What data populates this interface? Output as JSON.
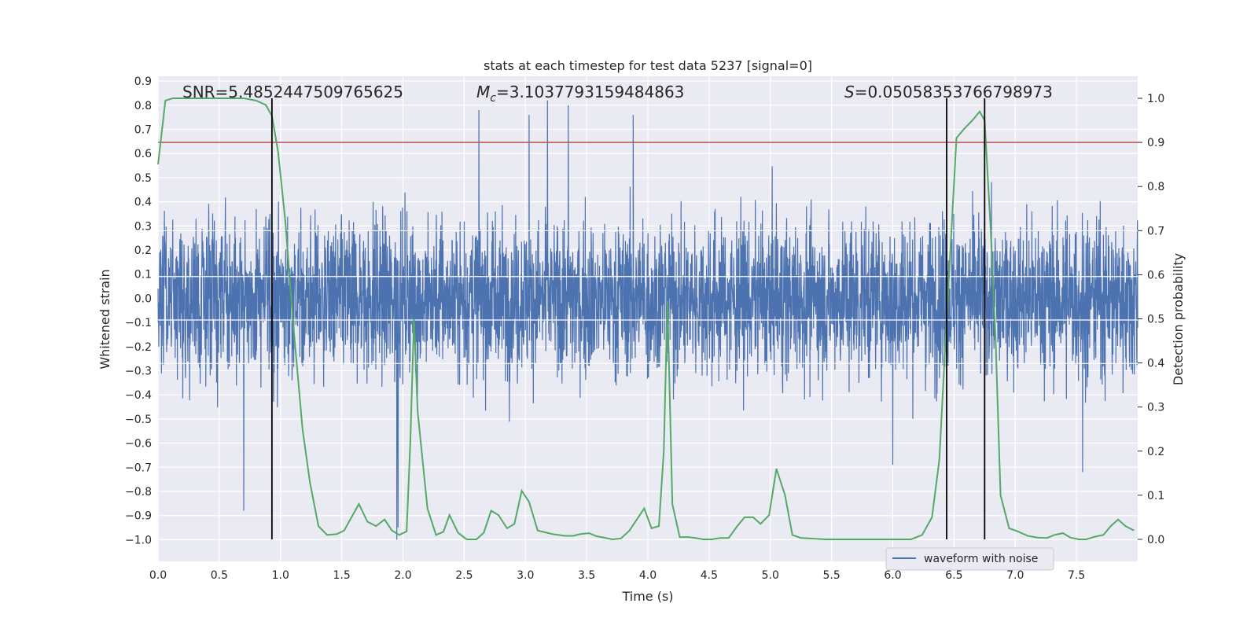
{
  "chart_data": {
    "type": "line",
    "title": "stats at each timestep for test data 5237 [signal=0]",
    "xlabel": "Time (s)",
    "ylabel": "Whitened strain",
    "y2label": "Detection probability",
    "xlim": [
      0.0,
      8.0
    ],
    "ylim": [
      -1.09,
      0.92
    ],
    "y2lim": [
      -0.05,
      1.05
    ],
    "xticks": [
      "0.0",
      "0.5",
      "1.0",
      "1.5",
      "2.0",
      "2.5",
      "3.0",
      "3.5",
      "4.0",
      "4.5",
      "5.0",
      "5.5",
      "6.0",
      "6.5",
      "7.0",
      "7.5"
    ],
    "yticks": [
      "0.9",
      "0.8",
      "0.7",
      "0.6",
      "0.5",
      "0.4",
      "0.3",
      "0.2",
      "0.1",
      "0.0",
      "−0.1",
      "−0.2",
      "−0.3",
      "−0.4",
      "−0.5",
      "−0.6",
      "−0.7",
      "−0.8",
      "−0.9",
      "−1.0"
    ],
    "y2ticks": [
      "1.0",
      "0.9",
      "0.8",
      "0.7",
      "0.6",
      "0.5",
      "0.4",
      "0.3",
      "0.2",
      "0.1",
      "0.0"
    ],
    "threshold": 0.9,
    "threshold_color": "#c44e52",
    "noise_color": "#4c72b0",
    "prob_color": "#55a868",
    "vlines": [
      0.93,
      6.44,
      6.75
    ],
    "annotations": {
      "snr": "SNR=5.4852447509765625",
      "mc_symbol": "M",
      "mc_sub": "c",
      "mc_value": "=3.1037793159484863",
      "s_symbol": "S",
      "s_value": "=0.05058353766798973"
    },
    "legend": "waveform with noise",
    "legend_position": "lower-right",
    "series": [
      {
        "name": "waveform with noise",
        "type": "noise",
        "amplitude_range": [
          -1.0,
          0.82
        ],
        "spikes": [
          {
            "x": 0.7,
            "y": -0.88
          },
          {
            "x": 1.95,
            "y": -1.0
          },
          {
            "x": 1.96,
            "y": -0.95
          },
          {
            "x": 3.18,
            "y": 0.82
          },
          {
            "x": 2.62,
            "y": 0.78
          },
          {
            "x": 3.03,
            "y": 0.76
          },
          {
            "x": 3.35,
            "y": 0.8
          },
          {
            "x": 7.55,
            "y": -0.72
          },
          {
            "x": 6.0,
            "y": -0.69
          },
          {
            "x": 3.88,
            "y": 0.76
          }
        ]
      },
      {
        "name": "detection probability",
        "x": [
          0.0,
          0.06,
          0.12,
          0.2,
          0.3,
          0.4,
          0.5,
          0.6,
          0.7,
          0.8,
          0.88,
          0.93,
          0.98,
          1.04,
          1.1,
          1.18,
          1.24,
          1.31,
          1.38,
          1.46,
          1.52,
          1.58,
          1.64,
          1.71,
          1.78,
          1.85,
          1.91,
          1.97,
          2.03,
          2.06,
          2.09,
          2.12,
          2.2,
          2.27,
          2.33,
          2.38,
          2.45,
          2.52,
          2.6,
          2.66,
          2.72,
          2.78,
          2.85,
          2.91,
          2.97,
          3.03,
          3.1,
          3.22,
          3.32,
          3.39,
          3.45,
          3.52,
          3.58,
          3.64,
          3.71,
          3.78,
          3.85,
          3.91,
          3.97,
          4.03,
          4.09,
          4.13,
          4.16,
          4.2,
          4.26,
          4.33,
          4.39,
          4.45,
          4.52,
          4.59,
          4.66,
          4.73,
          4.79,
          4.86,
          4.92,
          4.99,
          5.05,
          5.12,
          5.18,
          5.25,
          5.33,
          5.45,
          5.6,
          5.8,
          6.0,
          6.15,
          6.24,
          6.32,
          6.38,
          6.44,
          6.52,
          6.58,
          6.65,
          6.71,
          6.75,
          6.8,
          6.84,
          6.88,
          6.95,
          7.02,
          7.1,
          7.18,
          7.26,
          7.32,
          7.39,
          7.45,
          7.52,
          7.58,
          7.65,
          7.72,
          7.78,
          7.84,
          7.9,
          7.97
        ],
        "y": [
          0.85,
          0.995,
          1.0,
          1.0,
          1.0,
          1.0,
          1.0,
          1.0,
          1.0,
          0.995,
          0.985,
          0.96,
          0.88,
          0.72,
          0.5,
          0.25,
          0.13,
          0.03,
          0.01,
          0.012,
          0.02,
          0.05,
          0.08,
          0.04,
          0.03,
          0.045,
          0.02,
          0.01,
          0.018,
          0.22,
          0.5,
          0.29,
          0.07,
          0.01,
          0.017,
          0.055,
          0.015,
          0.0,
          0.0,
          0.015,
          0.065,
          0.055,
          0.025,
          0.035,
          0.11,
          0.085,
          0.02,
          0.012,
          0.008,
          0.008,
          0.012,
          0.014,
          0.007,
          0.004,
          0.0,
          0.002,
          0.02,
          0.045,
          0.07,
          0.025,
          0.03,
          0.2,
          0.54,
          0.08,
          0.005,
          0.005,
          0.003,
          0.0,
          0.0,
          0.003,
          0.003,
          0.03,
          0.05,
          0.05,
          0.035,
          0.055,
          0.16,
          0.1,
          0.01,
          0.003,
          0.002,
          0.0,
          0.0,
          0.0,
          0.0,
          0.0,
          0.01,
          0.05,
          0.18,
          0.5,
          0.91,
          0.93,
          0.95,
          0.97,
          0.95,
          0.7,
          0.45,
          0.1,
          0.025,
          0.018,
          0.008,
          0.004,
          0.003,
          0.01,
          0.014,
          0.004,
          0.0,
          0.0,
          0.006,
          0.01,
          0.03,
          0.045,
          0.03,
          0.02
        ]
      }
    ]
  }
}
